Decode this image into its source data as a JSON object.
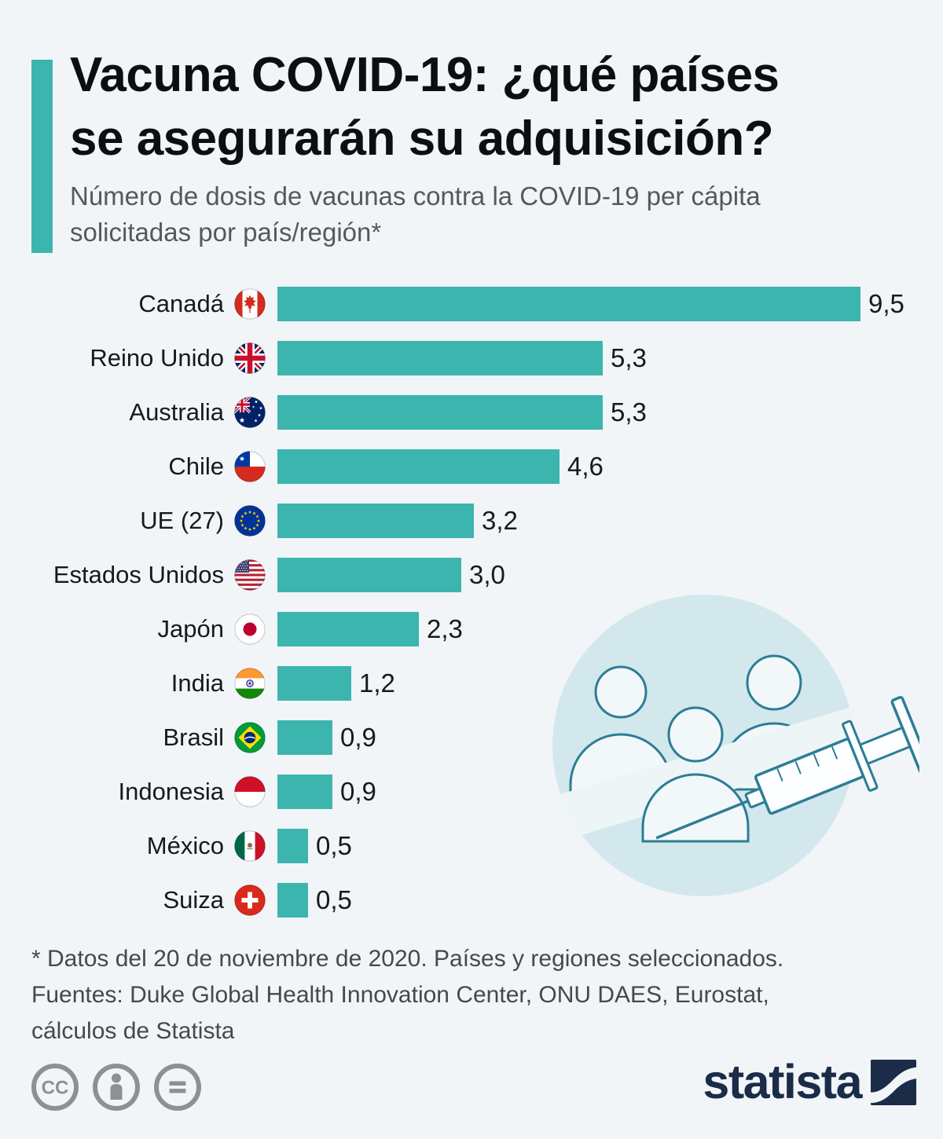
{
  "theme": {
    "background": "#F1F5F8",
    "accent": "#3CB5AE",
    "title_color": "#0D0E10",
    "subtitle_color": "#55595D",
    "footnote_color": "#45494C",
    "brand_navy": "#1B2C49",
    "illustration_fill": "#D2E8EC",
    "illustration_stroke": "#2C7D96"
  },
  "header": {
    "title_line1": "Vacuna COVID-19: ¿qué países",
    "title_line2": "se asegurarán su adquisición?",
    "subtitle": "Número de dosis de vacunas contra la COVID-19 per cápita solicitadas por país/región*"
  },
  "chart_data": {
    "type": "bar",
    "orientation": "horizontal",
    "title": "Vacuna COVID-19: ¿qué países se asegurarán su adquisición?",
    "subtitle": "Número de dosis de vacunas contra la COVID-19 per cápita solicitadas por país/región*",
    "categories": [
      "Canadá",
      "Reino Unido",
      "Australia",
      "Chile",
      "UE (27)",
      "Estados Unidos",
      "Japón",
      "India",
      "Brasil",
      "Indonesia",
      "México",
      "Suiza"
    ],
    "values": [
      9.5,
      5.3,
      5.3,
      4.6,
      3.2,
      3.0,
      2.3,
      1.2,
      0.9,
      0.9,
      0.5,
      0.5
    ],
    "value_labels": [
      "9,5",
      "5,3",
      "5,3",
      "4,6",
      "3,2",
      "3,0",
      "2,3",
      "1,2",
      "0,9",
      "0,9",
      "0,5",
      "0,5"
    ],
    "flags": [
      "flag-canada",
      "flag-uk",
      "flag-australia",
      "flag-chile",
      "flag-eu",
      "flag-usa",
      "flag-japan",
      "flag-india",
      "flag-brazil",
      "flag-indonesia",
      "flag-mexico",
      "flag-switzerland"
    ],
    "xlim": [
      0,
      9.5
    ],
    "bar_color": "#3CB5AE",
    "grid": false,
    "legend": false,
    "value_label_position": "right-of-bar"
  },
  "footnote": {
    "lines": [
      "* Datos del 20 de noviembre de 2020. Países y regiones seleccionados.",
      "Fuentes: Duke Global Health Innovation Center, ONU DAES, Eurostat,",
      "cálculos de Statista"
    ]
  },
  "footer": {
    "license_icons": [
      "cc-icon",
      "attribution-icon",
      "no-derivatives-icon"
    ],
    "brand": "statista"
  }
}
